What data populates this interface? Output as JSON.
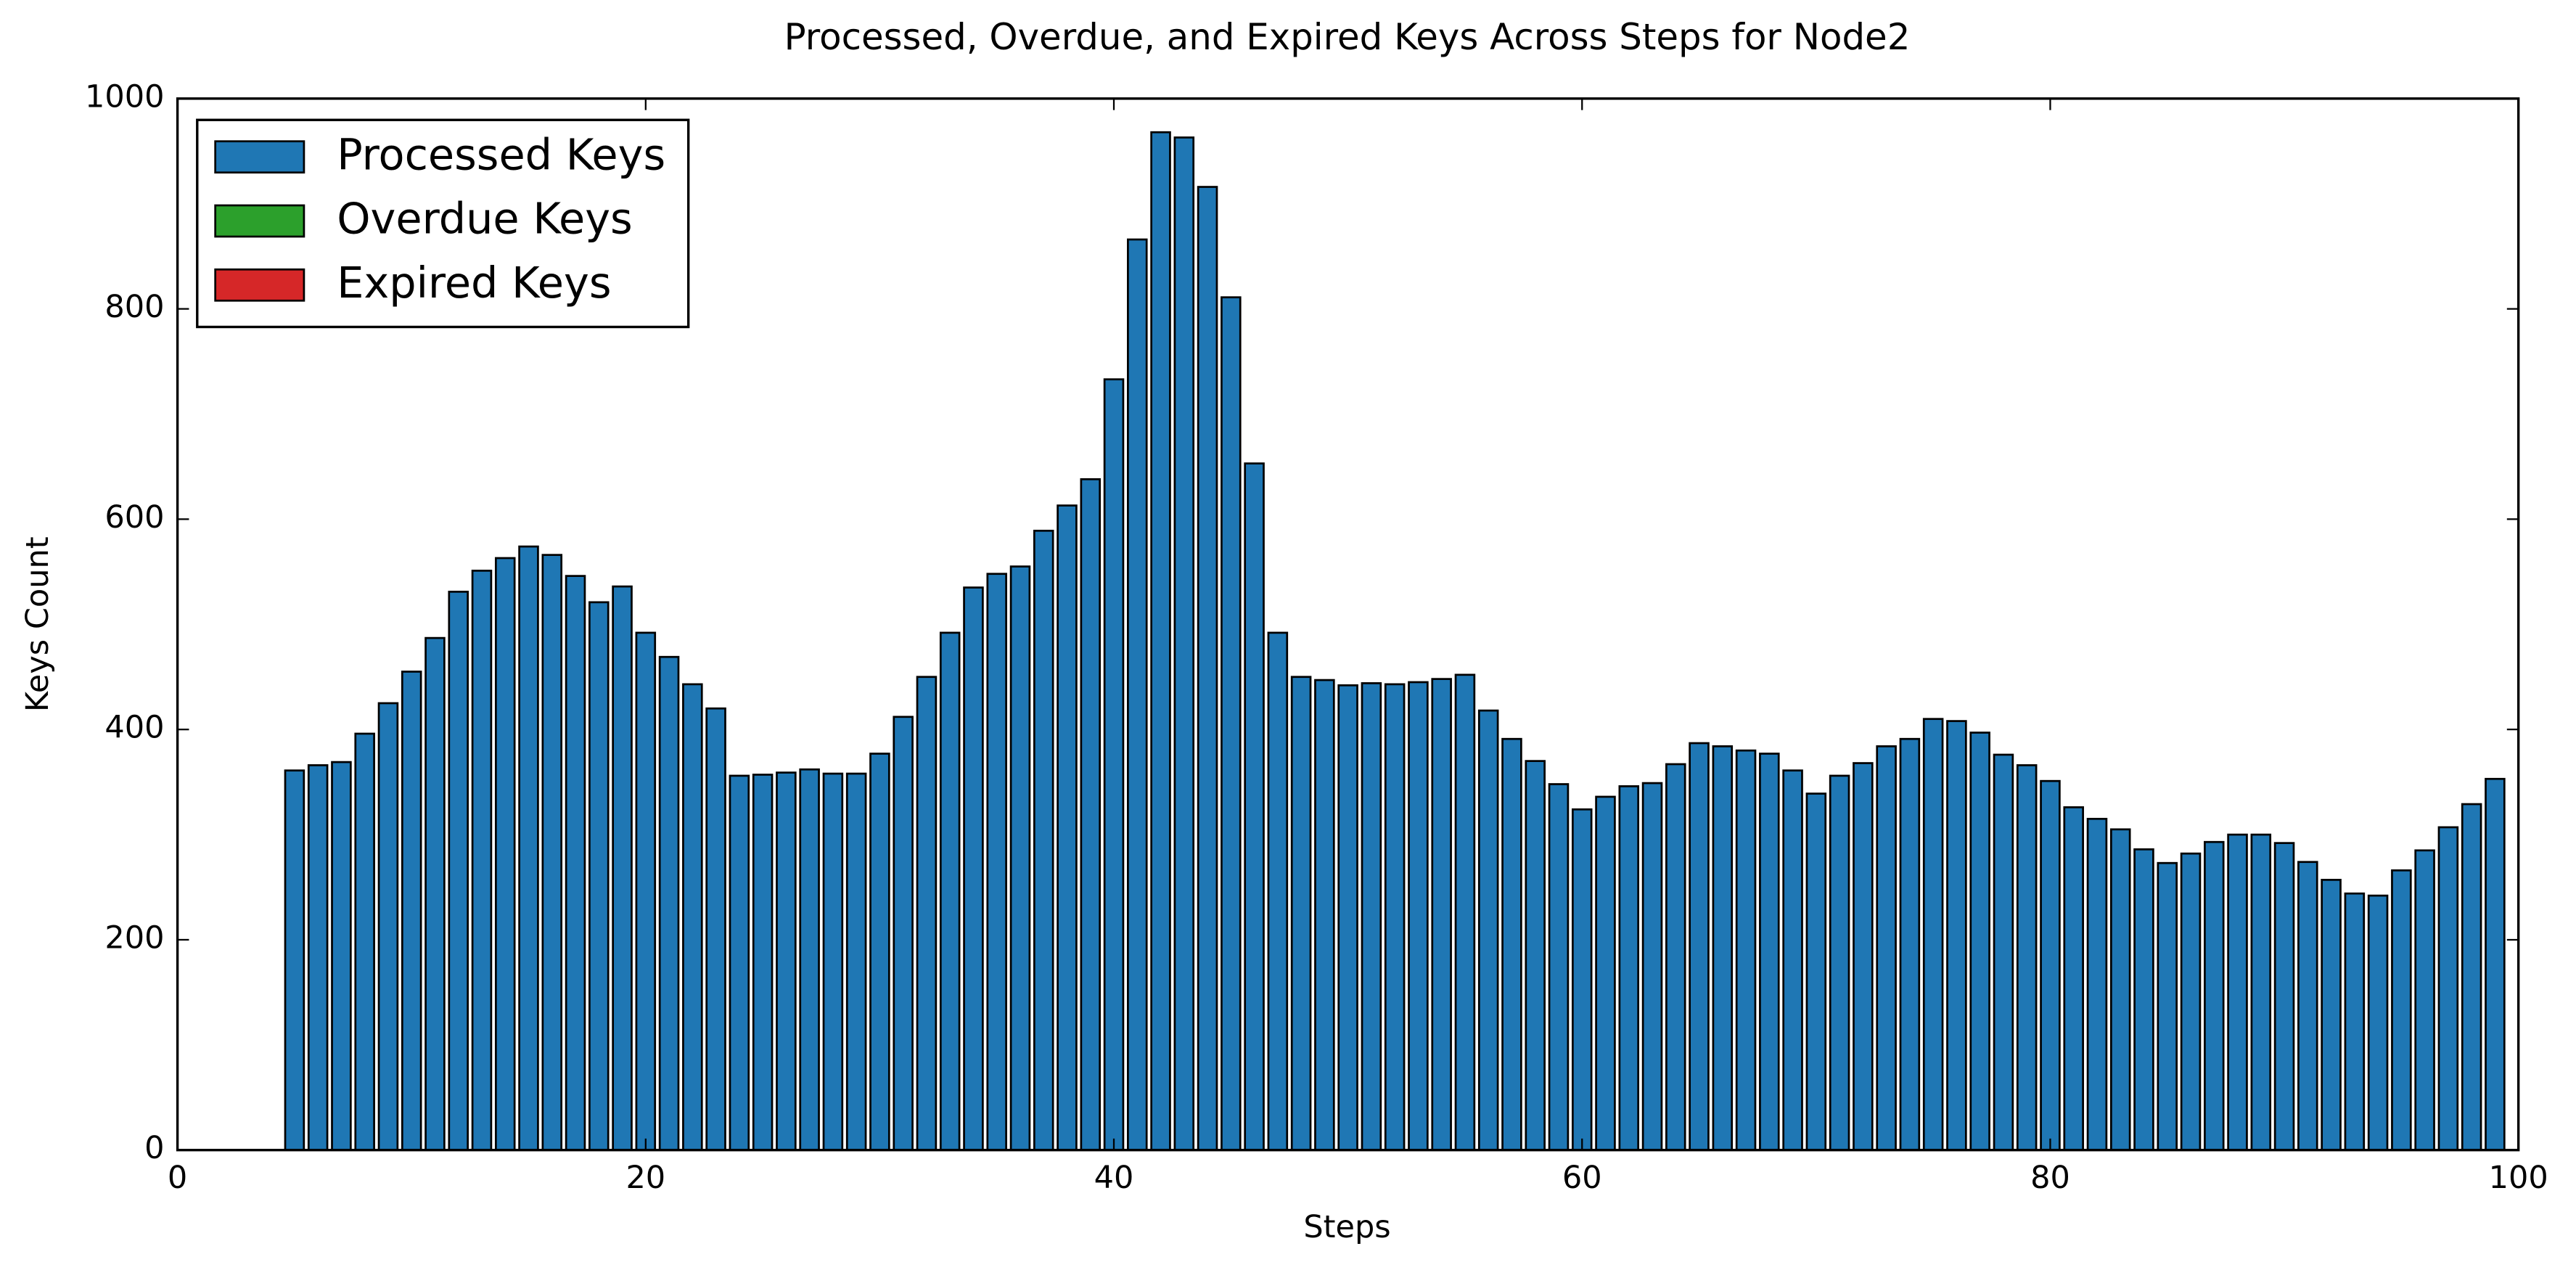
{
  "chart_data": {
    "type": "bar",
    "stacked": true,
    "title": "Processed, Overdue, and Expired Keys Across Steps for Node2",
    "xlabel": "Steps",
    "ylabel": "Keys Count",
    "x": [
      5,
      6,
      7,
      8,
      9,
      10,
      11,
      12,
      13,
      14,
      15,
      16,
      17,
      18,
      19,
      20,
      21,
      22,
      23,
      24,
      25,
      26,
      27,
      28,
      29,
      30,
      31,
      32,
      33,
      34,
      35,
      36,
      37,
      38,
      39,
      40,
      41,
      42,
      43,
      44,
      45,
      46,
      47,
      48,
      49,
      50,
      51,
      52,
      53,
      54,
      55,
      56,
      57,
      58,
      59,
      60,
      61,
      62,
      63,
      64,
      65,
      66,
      67,
      68,
      69,
      70,
      71,
      72,
      73,
      74,
      75,
      76,
      77,
      78,
      79,
      80,
      81,
      82,
      83,
      84,
      85,
      86,
      87,
      88,
      89,
      90,
      91,
      92,
      93,
      94,
      95,
      96,
      97,
      98,
      99
    ],
    "series": [
      {
        "name": "Processed Keys",
        "color": "#1f77b4",
        "values": [
          361,
          366,
          369,
          396,
          425,
          455,
          487,
          531,
          551,
          563,
          574,
          566,
          546,
          521,
          536,
          492,
          469,
          443,
          420,
          356,
          357,
          359,
          362,
          358,
          358,
          377,
          412,
          450,
          492,
          535,
          548,
          555,
          589,
          613,
          638,
          733,
          866,
          968,
          963,
          916,
          811,
          653,
          492,
          450,
          447,
          442,
          444,
          443,
          445,
          448,
          452,
          418,
          391,
          370,
          348,
          324,
          336,
          346,
          349,
          367,
          387,
          384,
          380,
          377,
          361,
          339,
          356,
          368,
          384,
          391,
          410,
          408,
          397,
          376,
          366,
          351,
          326,
          315,
          305,
          286,
          273,
          282,
          293,
          300,
          300,
          292,
          274,
          257,
          244,
          242,
          266,
          285,
          307,
          329,
          353
        ]
      },
      {
        "name": "Overdue Keys",
        "color": "#2ca02c",
        "values": [
          0,
          0,
          0,
          0,
          0,
          0,
          0,
          0,
          0,
          0,
          0,
          0,
          0,
          0,
          0,
          0,
          0,
          0,
          0,
          0,
          0,
          0,
          0,
          0,
          0,
          0,
          0,
          0,
          0,
          0,
          0,
          0,
          0,
          0,
          0,
          0,
          0,
          0,
          0,
          0,
          0,
          0,
          0,
          0,
          0,
          0,
          0,
          0,
          0,
          0,
          0,
          0,
          0,
          0,
          0,
          0,
          0,
          0,
          0,
          0,
          0,
          0,
          0,
          0,
          0,
          0,
          0,
          0,
          0,
          0,
          0,
          0,
          0,
          0,
          0,
          0,
          0,
          0,
          0,
          0,
          0,
          0,
          0,
          0,
          0,
          0,
          0,
          0,
          0,
          0,
          0,
          0,
          0,
          0,
          0
        ]
      },
      {
        "name": "Expired Keys",
        "color": "#d62728",
        "values": [
          0,
          0,
          0,
          0,
          0,
          0,
          0,
          0,
          0,
          0,
          0,
          0,
          0,
          0,
          0,
          0,
          0,
          0,
          0,
          0,
          0,
          0,
          0,
          0,
          0,
          0,
          0,
          0,
          0,
          0,
          0,
          0,
          0,
          0,
          0,
          0,
          0,
          0,
          0,
          0,
          0,
          0,
          0,
          0,
          0,
          0,
          0,
          0,
          0,
          0,
          0,
          0,
          0,
          0,
          0,
          0,
          0,
          0,
          0,
          0,
          0,
          0,
          0,
          0,
          0,
          0,
          0,
          0,
          0,
          0,
          0,
          0,
          0,
          0,
          0,
          0,
          0,
          0,
          0,
          0,
          0,
          0,
          0,
          0,
          0,
          0,
          0,
          0,
          0,
          0,
          0,
          0,
          0,
          0,
          0
        ]
      }
    ],
    "xlim": [
      0,
      100
    ],
    "xticks": [
      0,
      20,
      40,
      60,
      80,
      100
    ],
    "ylim": [
      0,
      1000
    ],
    "yticks": [
      0,
      200,
      400,
      600,
      800,
      1000
    ],
    "legend": "upper left"
  }
}
